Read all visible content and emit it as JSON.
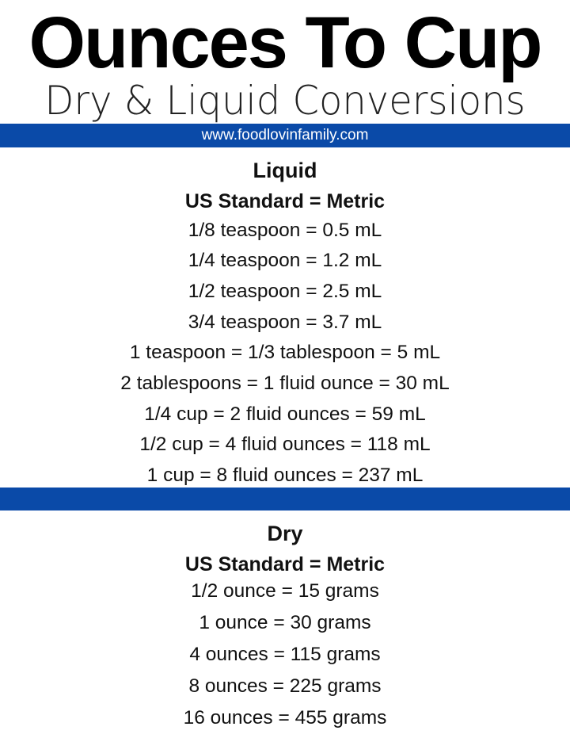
{
  "header": {
    "title": "Ounces To Cup",
    "subtitle": "Dry & Liquid Conversions",
    "website": "www.foodlovinfamily.com"
  },
  "colors": {
    "band": "#0a4aa8",
    "text": "#111111",
    "background": "#ffffff"
  },
  "liquid": {
    "heading": "Liquid",
    "subheading": "US Standard = Metric",
    "rows": [
      "1/8 teaspoon = 0.5 mL",
      "1/4 teaspoon = 1.2 mL",
      "1/2 teaspoon = 2.5 mL",
      "3/4 teaspoon = 3.7 mL",
      "1 teaspoon = 1/3 tablespoon = 5 mL",
      "2 tablespoons = 1 fluid ounce = 30 mL",
      "1/4 cup = 2 fluid ounces = 59 mL",
      "1/2 cup = 4 fluid ounces = 118 mL",
      "1 cup = 8 fluid ounces = 237 mL"
    ]
  },
  "dry": {
    "heading": "Dry",
    "subheading": "US Standard = Metric",
    "rows": [
      "1/2 ounce = 15 grams",
      "1 ounce = 30 grams",
      "4 ounces = 115 grams",
      "8 ounces = 225 grams",
      "16 ounces = 455 grams"
    ]
  }
}
